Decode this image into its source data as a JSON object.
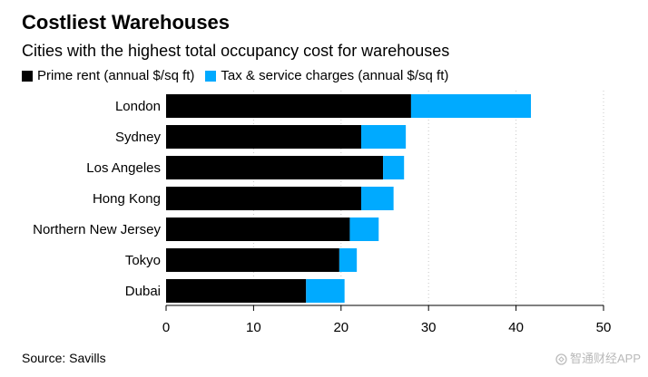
{
  "chart_data": {
    "type": "bar",
    "orientation": "horizontal",
    "stacked": true,
    "title": "Costliest Warehouses",
    "subtitle": "Cities with the highest total occupancy cost for warehouses",
    "categories": [
      "London",
      "Sydney",
      "Los Angeles",
      "Hong Kong",
      "Northern New Jersey",
      "Tokyo",
      "Dubai"
    ],
    "series": [
      {
        "name": "Prime rent (annual $/sq ft)",
        "color": "#000000",
        "values": [
          28.0,
          22.3,
          24.8,
          22.3,
          21.0,
          19.8,
          16.0
        ]
      },
      {
        "name": "Tax & service charges (annual $/sq ft)",
        "color": "#00aaff",
        "values": [
          13.7,
          5.1,
          2.4,
          3.7,
          3.3,
          2.0,
          4.4
        ]
      }
    ],
    "xlim": [
      0,
      50
    ],
    "xticks": [
      0,
      10,
      20,
      30,
      40,
      50
    ],
    "xlabel": "",
    "ylabel": "",
    "grid": "vertical-dotted",
    "legend_position": "top-left",
    "source": "Source: Savills"
  },
  "watermark": {
    "text": "智通财经APP",
    "icon": "zhitong-logo-icon"
  }
}
